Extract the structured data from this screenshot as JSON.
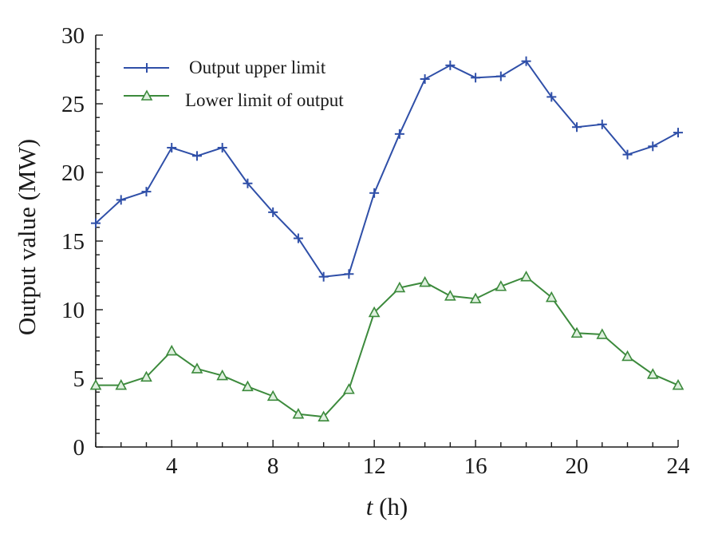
{
  "chart_data": {
    "type": "line",
    "title": "",
    "xlabel_var": "t",
    "xlabel_unit": " (h)",
    "ylabel": "Output  value  (MW)",
    "xlim": [
      1,
      24
    ],
    "ylim": [
      0,
      30
    ],
    "x_ticks": [
      4,
      8,
      12,
      16,
      20,
      24
    ],
    "y_ticks": [
      0,
      5,
      10,
      15,
      20,
      25,
      30
    ],
    "legend_position": "top-left",
    "x": [
      1,
      2,
      3,
      4,
      5,
      6,
      7,
      8,
      9,
      10,
      11,
      12,
      13,
      14,
      15,
      16,
      17,
      18,
      19,
      20,
      21,
      22,
      23,
      24
    ],
    "series": [
      {
        "name": "Output upper limit",
        "marker": "plus",
        "color": "#2f4fa8",
        "values": [
          16.3,
          18.0,
          18.6,
          21.8,
          21.2,
          21.8,
          19.2,
          17.1,
          15.2,
          12.4,
          12.6,
          18.5,
          22.8,
          26.8,
          27.8,
          26.9,
          27.0,
          28.1,
          25.5,
          23.3,
          23.5,
          21.3,
          21.9,
          22.9
        ]
      },
      {
        "name": "Lower limit of output",
        "marker": "triangle",
        "color": "#3c8a3c",
        "values": [
          4.5,
          4.5,
          5.1,
          7.0,
          5.7,
          5.2,
          4.4,
          3.7,
          2.4,
          2.2,
          4.2,
          9.8,
          11.6,
          12.0,
          11.0,
          10.8,
          11.7,
          12.4,
          10.9,
          8.3,
          8.2,
          6.6,
          5.3,
          4.5
        ]
      }
    ]
  }
}
